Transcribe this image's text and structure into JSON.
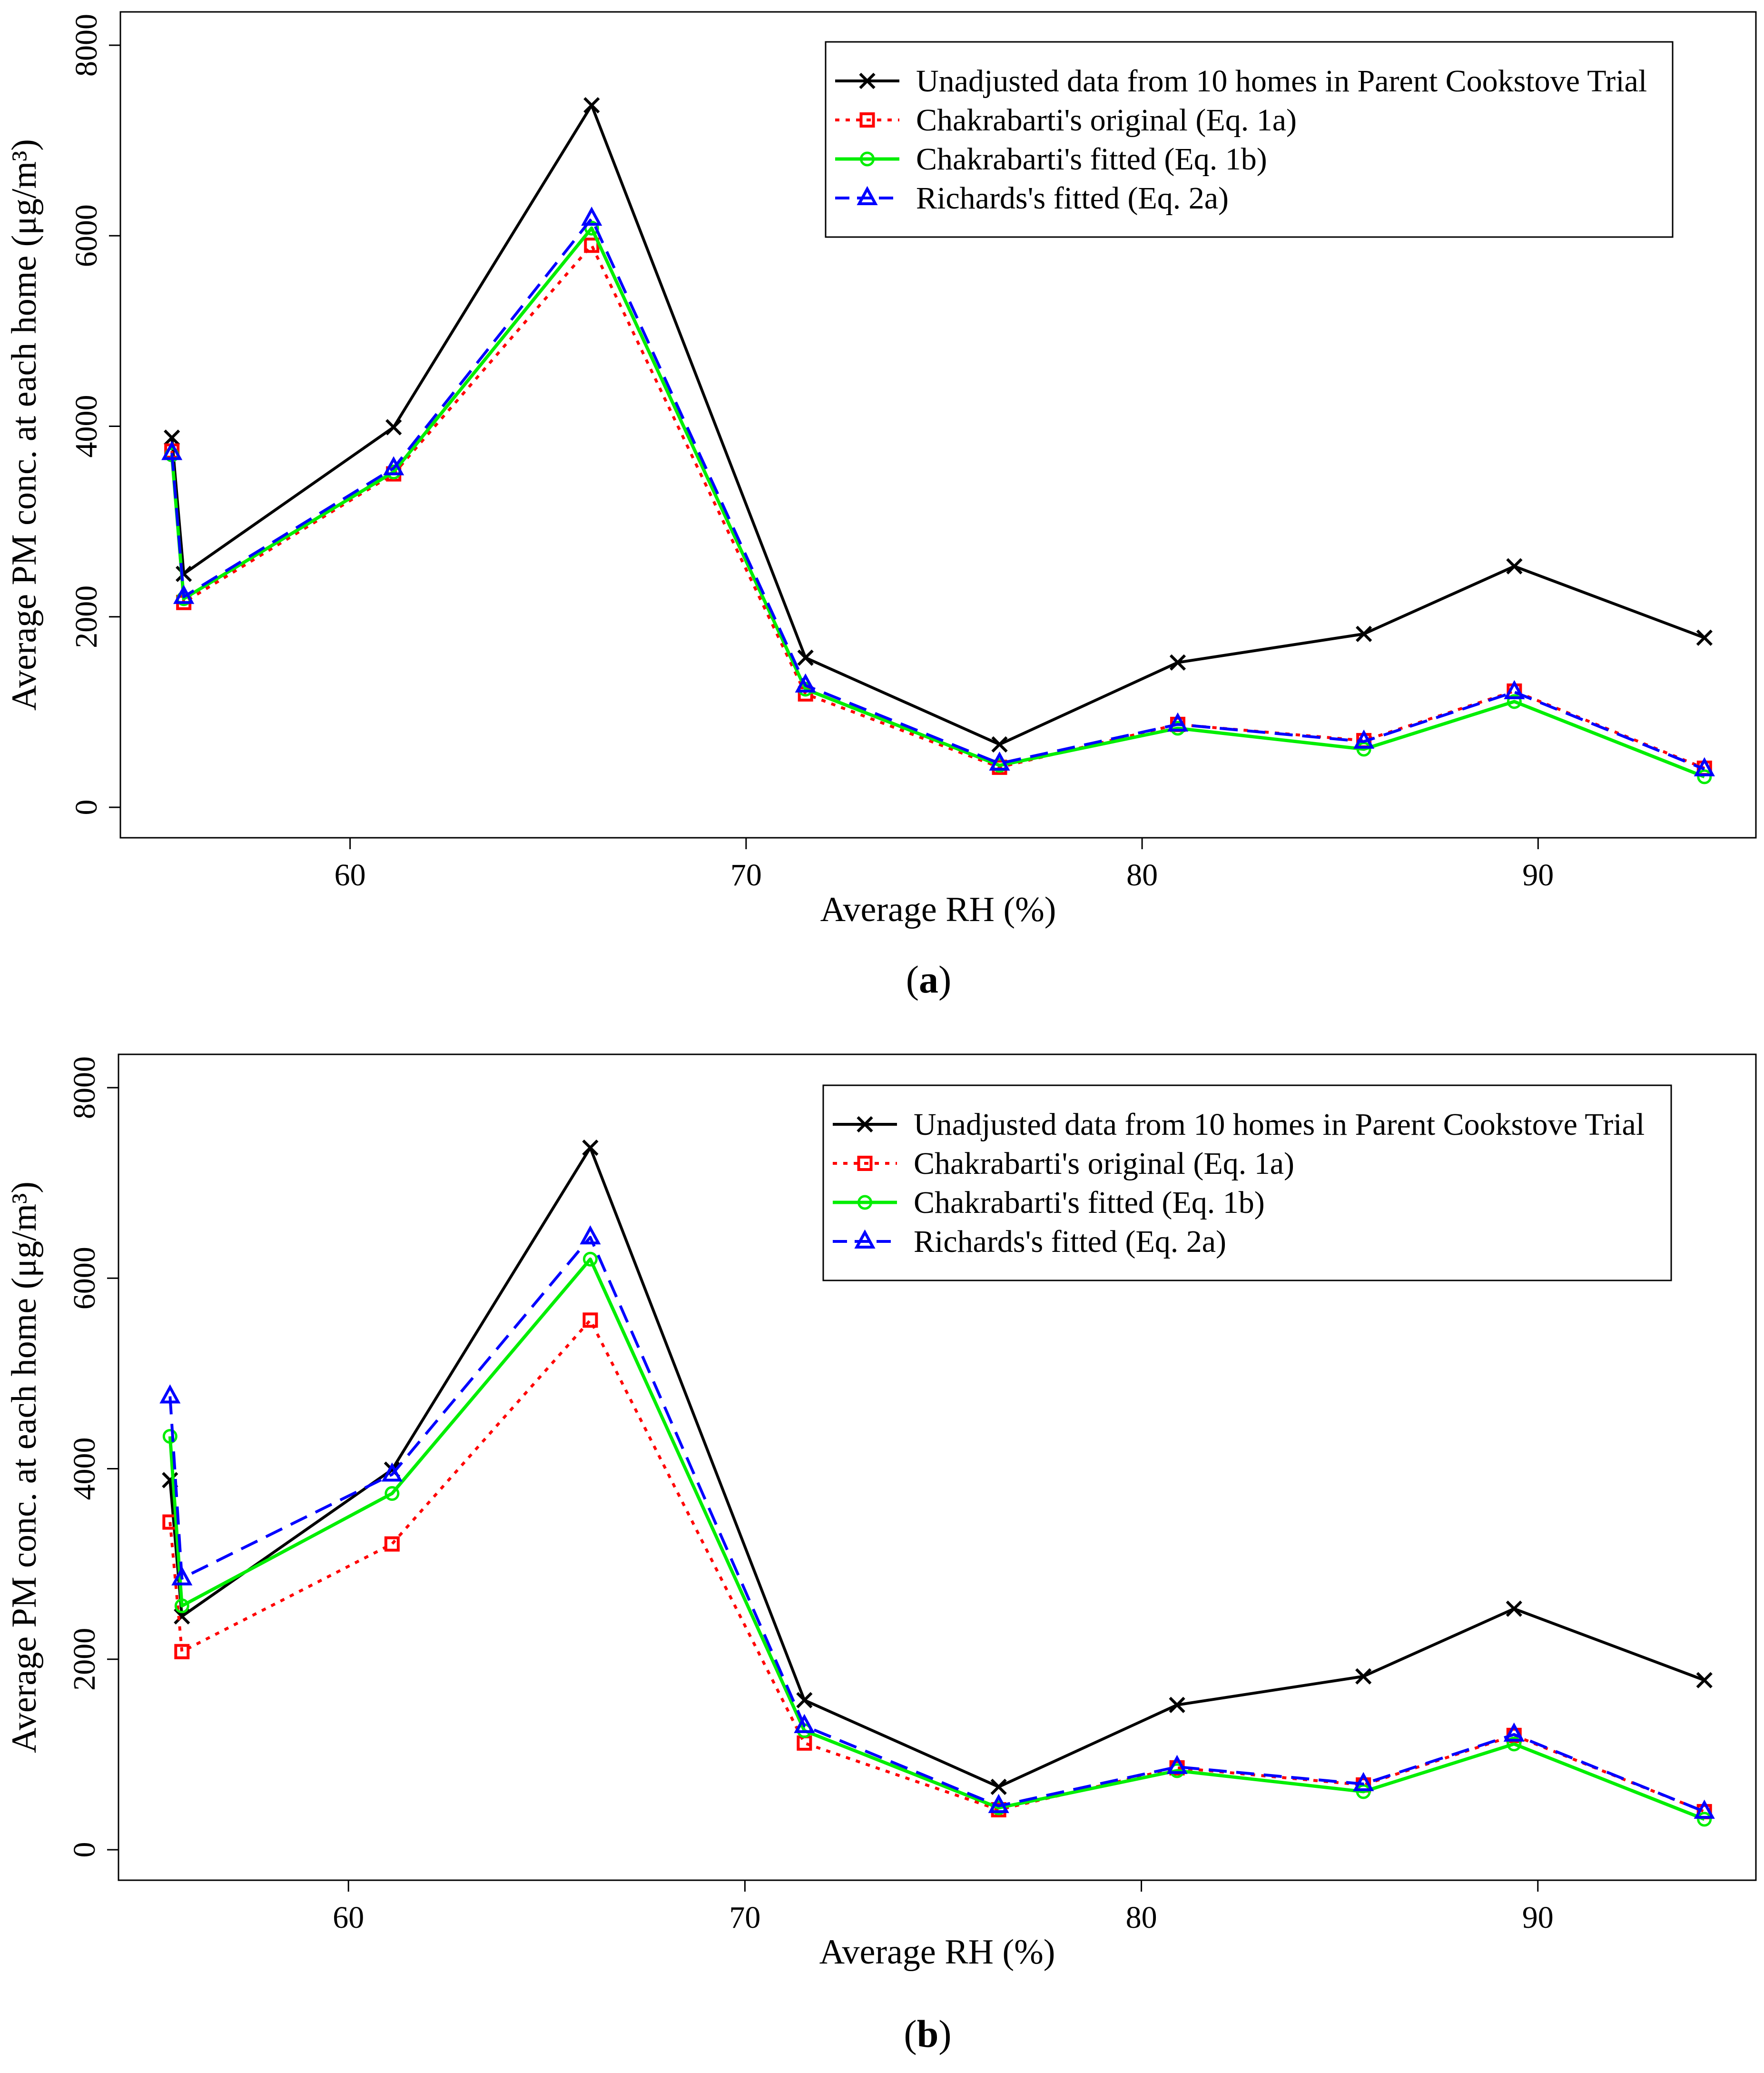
{
  "chart_data": [
    {
      "type": "line",
      "panel_label": "a",
      "xlabel": "Average RH (%)",
      "ylabel": "Average PM conc. at each home (μg/m³)",
      "xlim": [
        54.2,
        95.5
      ],
      "ylim": [
        -320,
        8350
      ],
      "xticks": [
        60,
        70,
        80,
        90
      ],
      "yticks": [
        0,
        2000,
        4000,
        6000,
        8000
      ],
      "legend_position": "top-right",
      "series": [
        {
          "name": "Unadjusted data from 10 homes in Parent Cookstove Trial",
          "color": "#000000",
          "dash": "solid",
          "marker": "x",
          "x": [
            55.5,
            55.8,
            61.1,
            66.1,
            71.5,
            76.4,
            80.9,
            85.6,
            89.4,
            94.2
          ],
          "y": [
            3880,
            2450,
            3990,
            7370,
            1570,
            660,
            1520,
            1820,
            2530,
            1780
          ]
        },
        {
          "name": "Chakrabarti's original (Eq. 1a)",
          "color": "#ff0000",
          "dash": "dotted",
          "marker": "square",
          "x": [
            55.5,
            55.8,
            61.1,
            66.1,
            71.5,
            76.4,
            80.9,
            85.6,
            89.4,
            94.2
          ],
          "y": [
            3740,
            2150,
            3500,
            5900,
            1190,
            420,
            870,
            700,
            1220,
            410
          ]
        },
        {
          "name": "Chakrabarti's fitted (Eq. 1b)",
          "color": "#00ee00",
          "dash": "solid",
          "marker": "circle",
          "x": [
            55.5,
            55.8,
            61.1,
            66.1,
            71.5,
            76.4,
            80.9,
            85.6,
            89.4,
            94.2
          ],
          "y": [
            3700,
            2190,
            3520,
            6080,
            1240,
            440,
            830,
            610,
            1110,
            320
          ]
        },
        {
          "name": "Richards's fitted (Eq. 2a)",
          "color": "#0000ff",
          "dash": "dashed",
          "marker": "triangle",
          "x": [
            55.5,
            55.8,
            61.1,
            66.1,
            71.5,
            76.4,
            80.9,
            85.6,
            89.4,
            94.2
          ],
          "y": [
            3720,
            2210,
            3560,
            6180,
            1280,
            460,
            870,
            690,
            1210,
            400
          ]
        }
      ]
    },
    {
      "type": "line",
      "panel_label": "b",
      "xlabel": "Average RH (%)",
      "ylabel": "Average PM conc. at each home (μg/m³)",
      "xlim": [
        54.2,
        95.5
      ],
      "ylim": [
        -320,
        8350
      ],
      "xticks": [
        60,
        70,
        80,
        90
      ],
      "yticks": [
        0,
        2000,
        4000,
        6000,
        8000
      ],
      "legend_position": "top-right",
      "series": [
        {
          "name": "Unadjusted data from 10 homes in Parent Cookstove Trial",
          "color": "#000000",
          "dash": "solid",
          "marker": "x",
          "x": [
            55.5,
            55.8,
            61.1,
            66.1,
            71.5,
            76.4,
            80.9,
            85.6,
            89.4,
            94.2
          ],
          "y": [
            3880,
            2450,
            3990,
            7370,
            1570,
            660,
            1520,
            1820,
            2530,
            1780
          ]
        },
        {
          "name": "Chakrabarti's original (Eq. 1a)",
          "color": "#ff0000",
          "dash": "dotted",
          "marker": "square",
          "x": [
            55.5,
            55.8,
            61.1,
            66.1,
            71.5,
            76.4,
            80.9,
            85.6,
            89.4,
            94.2
          ],
          "y": [
            3440,
            2080,
            3210,
            5560,
            1120,
            420,
            860,
            680,
            1200,
            400
          ]
        },
        {
          "name": "Chakrabarti's fitted (Eq. 1b)",
          "color": "#00ee00",
          "dash": "solid",
          "marker": "circle",
          "x": [
            55.5,
            55.8,
            61.1,
            66.1,
            71.5,
            76.4,
            80.9,
            85.6,
            89.4,
            94.2
          ],
          "y": [
            4340,
            2560,
            3740,
            6200,
            1250,
            440,
            830,
            610,
            1110,
            320
          ]
        },
        {
          "name": "Richards's fitted (Eq. 2a)",
          "color": "#0000ff",
          "dash": "dashed",
          "marker": "triangle",
          "x": [
            55.5,
            55.8,
            61.1,
            66.1,
            71.5,
            76.4,
            80.9,
            85.6,
            89.4,
            94.2
          ],
          "y": [
            4760,
            2850,
            3940,
            6430,
            1300,
            460,
            870,
            690,
            1210,
            400
          ]
        }
      ]
    }
  ]
}
